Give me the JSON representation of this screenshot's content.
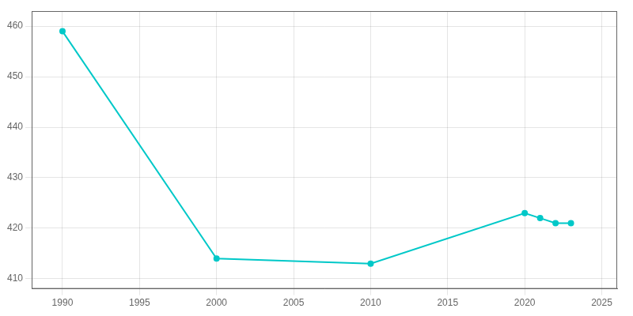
{
  "chart_data": {
    "type": "line",
    "x": [
      1990,
      2000,
      2010,
      2020,
      2021,
      2022,
      2023
    ],
    "values": [
      459,
      414,
      413,
      423,
      422,
      421,
      421
    ],
    "color": "#00c8c8",
    "marker": "circle",
    "xlim": [
      1988,
      2026
    ],
    "xticks": [
      1990,
      1995,
      2000,
      2005,
      2010,
      2015,
      2020,
      2025
    ],
    "ylim": [
      408,
      463
    ],
    "yticks": [
      410,
      420,
      430,
      440,
      450,
      460
    ],
    "grid": true
  }
}
